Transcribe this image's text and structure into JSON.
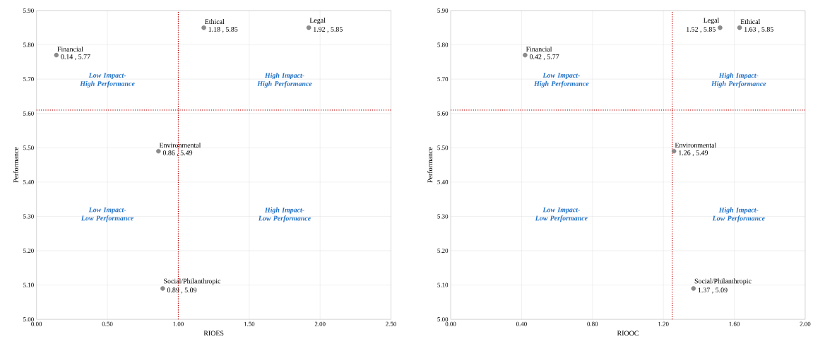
{
  "chart_data": [
    {
      "type": "scatter",
      "xlabel": "RIOES",
      "ylabel": "Performance",
      "grid": true,
      "marker": "circle",
      "xlim": [
        0,
        2.5
      ],
      "ylim": [
        5.0,
        5.9
      ],
      "xticks": [
        {
          "value": 0,
          "label": "0.00"
        },
        {
          "value": 0.5,
          "label": "0.50"
        },
        {
          "value": 1,
          "label": "1.00"
        },
        {
          "value": 1.5,
          "label": "1.50"
        },
        {
          "value": 2,
          "label": "2.00"
        },
        {
          "value": 2.5,
          "label": "2.50"
        }
      ],
      "yticks": [
        {
          "value": 5.0,
          "label": "5.00"
        },
        {
          "value": 5.1,
          "label": "5.10"
        },
        {
          "value": 5.2,
          "label": "5.20"
        },
        {
          "value": 5.3,
          "label": "5.30"
        },
        {
          "value": 5.4,
          "label": "5.40"
        },
        {
          "value": 5.5,
          "label": "5.50"
        },
        {
          "value": 5.6,
          "label": "5.60"
        },
        {
          "value": 5.7,
          "label": "5.70"
        },
        {
          "value": 5.8,
          "label": "5.80"
        },
        {
          "value": 5.9,
          "label": "5.90"
        }
      ],
      "series": [
        {
          "name": "Financial",
          "color": "#8c8c8c",
          "x": [
            0.14
          ],
          "values": [
            5.77
          ],
          "value_labels": [
            "0.14 , 5.77"
          ]
        },
        {
          "name": "Ethical",
          "color": "#8c8c8c",
          "x": [
            1.18
          ],
          "values": [
            5.85
          ],
          "value_labels": [
            "1.18 , 5.85"
          ]
        },
        {
          "name": "Legal",
          "color": "#8c8c8c",
          "x": [
            1.92
          ],
          "values": [
            5.85
          ],
          "value_labels": [
            "1.92 , 5.85"
          ]
        },
        {
          "name": "Environmental",
          "color": "#8c8c8c",
          "x": [
            0.86
          ],
          "values": [
            5.49
          ],
          "value_labels": [
            "0.86 , 5.49"
          ]
        },
        {
          "name": "Social/Philanthropic",
          "color": "#8c8c8c",
          "x": [
            0.89
          ],
          "values": [
            5.09
          ],
          "value_labels": [
            "0.89 , 5.09"
          ]
        }
      ],
      "ref_lines": [
        {
          "axis": "x",
          "value": 1.0,
          "color": "#c00000",
          "line_style": "dotted"
        },
        {
          "axis": "y",
          "value": 5.61,
          "color": "#c00000",
          "line_style": "dotted"
        }
      ],
      "annotations": [
        "Low Impact- High Performance",
        "High Impact- High Performance",
        "Low Impact- Low Performance",
        "High Impact- Low Performance"
      ]
    },
    {
      "type": "scatter",
      "xlabel": "RIOOC",
      "ylabel": "Performance",
      "grid": true,
      "marker": "circle",
      "xlim": [
        0,
        2.0
      ],
      "ylim": [
        5.0,
        5.9
      ],
      "xticks": [
        {
          "value": 0,
          "label": "0.00"
        },
        {
          "value": 0.4,
          "label": "0.40"
        },
        {
          "value": 0.8,
          "label": "0.80"
        },
        {
          "value": 1.2,
          "label": "1.20"
        },
        {
          "value": 1.6,
          "label": "1.60"
        },
        {
          "value": 2.0,
          "label": "2.00"
        }
      ],
      "yticks": [
        {
          "value": 5.0,
          "label": "5.00"
        },
        {
          "value": 5.1,
          "label": "5.10"
        },
        {
          "value": 5.2,
          "label": "5.20"
        },
        {
          "value": 5.3,
          "label": "5.30"
        },
        {
          "value": 5.4,
          "label": "5.40"
        },
        {
          "value": 5.5,
          "label": "5.50"
        },
        {
          "value": 5.6,
          "label": "5.60"
        },
        {
          "value": 5.7,
          "label": "5.70"
        },
        {
          "value": 5.8,
          "label": "5.80"
        },
        {
          "value": 5.9,
          "label": "5.90"
        }
      ],
      "series": [
        {
          "name": "Financial",
          "color": "#8c8c8c",
          "x": [
            0.42
          ],
          "values": [
            5.77
          ],
          "value_labels": [
            "0.42 , 5.77"
          ]
        },
        {
          "name": "Legal",
          "color": "#8c8c8c",
          "x": [
            1.52
          ],
          "values": [
            5.85
          ],
          "value_labels": [
            "1.52 , 5.85"
          ]
        },
        {
          "name": "Ethical",
          "color": "#8c8c8c",
          "x": [
            1.63
          ],
          "values": [
            5.85
          ],
          "value_labels": [
            "1.63 , 5.85"
          ]
        },
        {
          "name": "Environmental",
          "color": "#8c8c8c",
          "x": [
            1.26
          ],
          "values": [
            5.49
          ],
          "value_labels": [
            "1.26 , 5.49"
          ]
        },
        {
          "name": "Social/Philanthropic",
          "color": "#8c8c8c",
          "x": [
            1.37
          ],
          "values": [
            5.09
          ],
          "value_labels": [
            "1.37 , 5.09"
          ]
        }
      ],
      "ref_lines": [
        {
          "axis": "x",
          "value": 1.25,
          "color": "#c00000",
          "line_style": "dotted"
        },
        {
          "axis": "y",
          "value": 5.61,
          "color": "#c00000",
          "line_style": "dotted"
        }
      ],
      "annotations": [
        "Low Impact- High Performance",
        "High Impact- High Performance",
        "Low Impact- Low Performance",
        "High Impact- Low Performance"
      ]
    }
  ]
}
